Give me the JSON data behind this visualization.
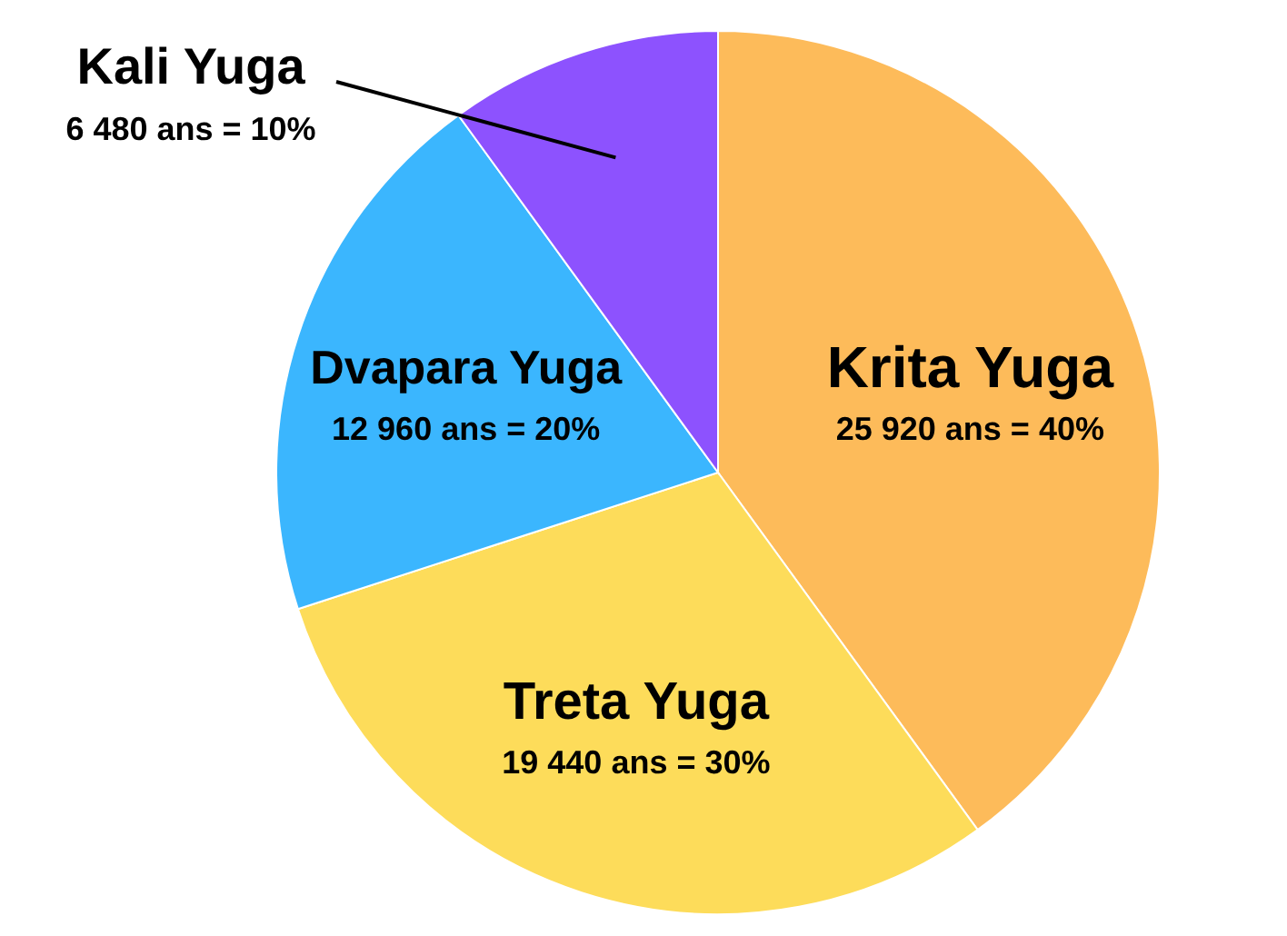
{
  "chart_data": {
    "type": "pie",
    "categories": [
      "Krita Yuga",
      "Treta Yuga",
      "Dvapara Yuga",
      "Kali Yuga"
    ],
    "values": [
      25920,
      19440,
      12960,
      6480
    ],
    "colors": [
      "#fdbb5a",
      "#fddc5a",
      "#3bb6fe",
      "#8d52fe"
    ],
    "value_labels": [
      "25 920 ans = 40%",
      "19 440 ans = 30%",
      "12 960 ans = 20%",
      "6 480 ans = 10%"
    ]
  }
}
